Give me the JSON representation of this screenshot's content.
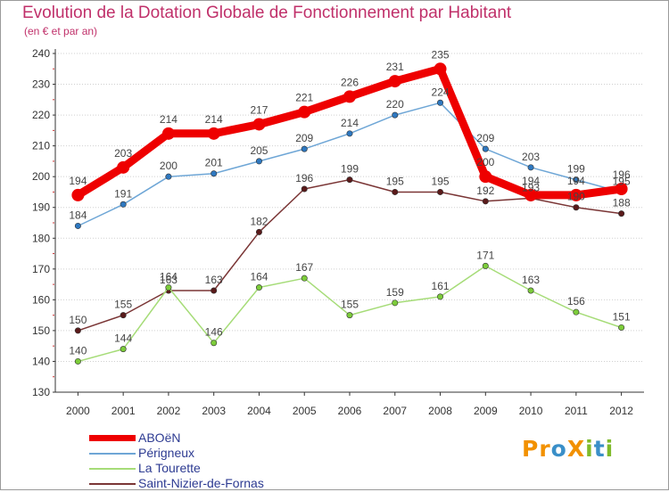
{
  "title": "Evolution de la Dotation Globale de Fonctionnement par Habitant",
  "subtitle": "(en € et par an)",
  "logo": {
    "text": "ProXiti",
    "letters": [
      {
        "ch": "P",
        "color": "#f29100"
      },
      {
        "ch": "r",
        "color": "#f29100"
      },
      {
        "ch": "o",
        "color": "#3a8fc8"
      },
      {
        "ch": "X",
        "color": "#f29100"
      },
      {
        "ch": "i",
        "color": "#7fba2b"
      },
      {
        "ch": "t",
        "color": "#3a8fc8"
      },
      {
        "ch": "i",
        "color": "#7fba2b"
      }
    ]
  },
  "chart_data": {
    "type": "line",
    "title": "Evolution de la Dotation Globale de Fonctionnement par Habitant",
    "subtitle": "(en € et par an)",
    "xlabel": "",
    "ylabel": "",
    "x": [
      "2000",
      "2001",
      "2002",
      "2003",
      "2004",
      "2005",
      "2006",
      "2007",
      "2008",
      "2009",
      "2010",
      "2011",
      "2012"
    ],
    "ylim": [
      130,
      240
    ],
    "yticks": [
      130,
      140,
      150,
      160,
      170,
      180,
      190,
      200,
      210,
      220,
      230,
      240
    ],
    "grid": "horizontal",
    "legend_position": "bottom-left",
    "series": [
      {
        "name": "ABOëN",
        "color": "#ee0000",
        "marker_color": "#ee0000",
        "emphasis": "thick",
        "values": [
          194,
          203,
          214,
          214,
          217,
          221,
          226,
          231,
          235,
          200,
          194,
          194,
          196
        ],
        "labels": [
          "194",
          "203",
          "214",
          "214",
          "217",
          "221",
          "226",
          "231",
          "235",
          "200",
          "194",
          "194",
          "196"
        ]
      },
      {
        "name": "Périgneux",
        "color": "#6ea6d6",
        "marker_color": "#2e78c0",
        "emphasis": "normal",
        "values": [
          184,
          191,
          200,
          201,
          205,
          209,
          214,
          220,
          224,
          209,
          203,
          199,
          195
        ],
        "labels": [
          "184",
          "191",
          "200",
          "201",
          "205",
          "209",
          "214",
          "220",
          "224",
          "209",
          "203",
          "199",
          "195"
        ]
      },
      {
        "name": "La Tourette",
        "color": "#a6dc78",
        "marker_color": "#7ccc3a",
        "emphasis": "normal",
        "values": [
          140,
          144,
          164,
          146,
          164,
          167,
          155,
          159,
          161,
          171,
          163,
          156,
          151
        ],
        "labels": [
          "140",
          "144",
          "164",
          "146",
          "164",
          "167",
          "155",
          "159",
          "161",
          "171",
          "163",
          "156",
          "151"
        ]
      },
      {
        "name": "Saint-Nizier-de-Fornas",
        "color": "#7a3535",
        "marker_color": "#5a1a1a",
        "emphasis": "normal",
        "values": [
          150,
          155,
          163,
          163,
          182,
          196,
          199,
          195,
          195,
          192,
          193,
          190,
          188
        ],
        "labels": [
          "150",
          "155",
          "163",
          "163",
          "182",
          "196",
          "199",
          "195",
          "195",
          "192",
          "193",
          "190",
          "188"
        ]
      }
    ]
  }
}
